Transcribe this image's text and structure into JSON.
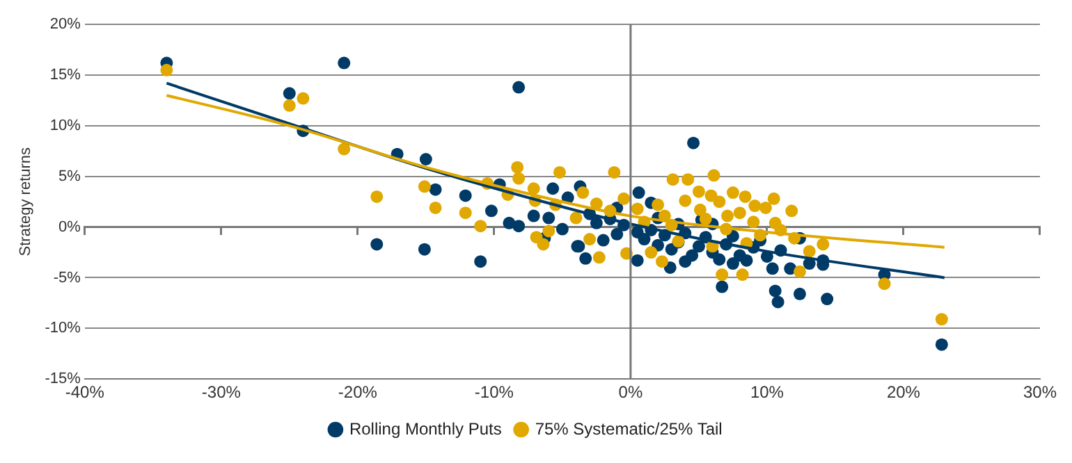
{
  "chart_data": {
    "type": "scatter",
    "ylabel": "Strategy returns",
    "xlim": [
      -40,
      30
    ],
    "xticks": [
      {
        "value": -40,
        "label": "-40%"
      },
      {
        "value": -30,
        "label": "-30%"
      },
      {
        "value": -20,
        "label": "-20%"
      },
      {
        "value": -10,
        "label": "-10%"
      },
      {
        "value": 0,
        "label": "0%"
      },
      {
        "value": 10,
        "label": "10%"
      },
      {
        "value": 20,
        "label": "20%"
      },
      {
        "value": 30,
        "label": "30%"
      }
    ],
    "ylim": [
      -15,
      20
    ],
    "yticks": [
      {
        "value": -15,
        "label": "-15%"
      },
      {
        "value": -10,
        "label": "-10%"
      },
      {
        "value": -5,
        "label": "-5%"
      },
      {
        "value": 0,
        "label": "0%"
      },
      {
        "value": 5,
        "label": "5%"
      },
      {
        "value": 10,
        "label": "10%"
      },
      {
        "value": 15,
        "label": "15%"
      },
      {
        "value": 20,
        "label": "20%"
      }
    ],
    "grid": "y",
    "legend": "bottom",
    "ref_lines": [
      {
        "axis": "x",
        "value": 0,
        "color": "#777777"
      }
    ],
    "marker": "circle",
    "series": [
      {
        "name": "75% Systematic/25% Tail",
        "color": "#e0a800",
        "x": [
          -34,
          -25,
          -24,
          -21,
          -18.6,
          -15.1,
          -14.3,
          -12.1,
          -11,
          -8.3,
          -8.2,
          -10.5,
          -5.2,
          -1.2,
          -2.3,
          -6.4,
          -6.9,
          -7.1,
          3.1,
          4.2,
          6.1,
          7.5,
          8.4,
          9.1,
          9.9,
          11.8,
          10.6,
          14.1,
          13.1,
          12.4,
          8.2,
          6.7,
          18.6,
          22.8,
          -0.3,
          2.3,
          5.9,
          5.1,
          7.1,
          0.5,
          1,
          2,
          2.5,
          3,
          4,
          5,
          5.5,
          6.5,
          7,
          8,
          9,
          9.5,
          10.5,
          11,
          12,
          -0.5,
          -1.5,
          -2.5,
          -3.5,
          -4,
          -5.5,
          -7,
          -6,
          -3,
          1.5,
          3.5,
          6,
          8.5,
          -9
        ],
        "values": [
          15.5,
          12,
          12.7,
          7.7,
          3,
          4,
          1.9,
          1.4,
          0.1,
          5.9,
          4.8,
          4.3,
          5.4,
          5.4,
          -3,
          -1.7,
          -1,
          3.8,
          4.7,
          4.7,
          5.1,
          3.4,
          3,
          2.1,
          1.9,
          1.6,
          0.4,
          -1.7,
          -2.4,
          -4.4,
          -4.7,
          -4.7,
          -5.6,
          -9.1,
          -2.6,
          -3.4,
          3.1,
          1.7,
          1.1,
          1.8,
          0.5,
          2.2,
          1.1,
          0.2,
          2.6,
          3.5,
          0.8,
          2.5,
          -0.2,
          1.4,
          0.5,
          -0.8,
          2.8,
          -0.3,
          -1.1,
          2.8,
          1.6,
          2.3,
          3.4,
          0.9,
          2.2,
          2.6,
          -0.4,
          -1.2,
          -2.5,
          -1.4,
          -1.9,
          -1.6,
          3.2
        ]
      },
      {
        "name": "Rolling Monthly Puts",
        "color": "#003a66",
        "x": [
          -34,
          -25,
          -24,
          -21,
          -17.1,
          -15,
          -14.3,
          -18.6,
          -15.1,
          -11,
          -8.2,
          -9.6,
          -10.2,
          -12.1,
          -5.7,
          -3.7,
          -4.6,
          -8.9,
          -8.2,
          -7.1,
          -6.3,
          -3.8,
          -3.3,
          4.6,
          0.6,
          1.5,
          2.9,
          6.7,
          10.6,
          10.8,
          12.4,
          14.4,
          18.6,
          22.8,
          14.1,
          14.1,
          13.1,
          11.7,
          12.4,
          10.4,
          5.2,
          0.5,
          -3.9,
          0.5,
          1,
          1.5,
          2,
          2.5,
          3,
          3.5,
          4,
          4.5,
          5,
          5.5,
          6,
          6.5,
          7,
          7.5,
          8,
          8.5,
          9,
          9.5,
          10,
          11,
          -0.5,
          -1,
          -1.5,
          -2,
          -2.5,
          -3,
          -1,
          2,
          3.5,
          -6,
          -5,
          6,
          7.5,
          4
        ],
        "values": [
          16.2,
          13.2,
          9.5,
          16.2,
          7.2,
          6.7,
          3.7,
          -1.7,
          -2.2,
          -3.4,
          13.8,
          4.2,
          1.6,
          3.1,
          3.8,
          4,
          2.9,
          0.4,
          0.1,
          1.1,
          -1.1,
          -1.9,
          -3.1,
          8.3,
          3.4,
          2.4,
          -4,
          -5.9,
          -6.3,
          -7.4,
          -6.6,
          -7.1,
          -4.7,
          -11.6,
          -3.3,
          -3.7,
          -3.6,
          -4.1,
          -1.1,
          -4.1,
          0.7,
          -3.3,
          -1.9,
          -0.5,
          -1.2,
          -0.3,
          -1.8,
          -0.8,
          -2.2,
          -1.5,
          -0.6,
          -2.8,
          -1.9,
          -1,
          -2.5,
          -3.2,
          -1.7,
          -0.9,
          -2.8,
          -3.3,
          -2,
          -1.3,
          -2.9,
          -2.3,
          0.2,
          -0.7,
          0.8,
          -1.3,
          0.4,
          1.3,
          1.9,
          0.9,
          0.3,
          0.9,
          -0.2,
          0.3,
          -3.6,
          -3.4
        ]
      },
      {
        "type": "line",
        "marker": "none",
        "color": "#e0a800",
        "x": [
          -34,
          -25,
          -15,
          -5,
          0,
          10,
          23
        ],
        "values": [
          13,
          10,
          5.9,
          2.5,
          1.1,
          -0.5,
          -2
        ]
      },
      {
        "type": "line",
        "marker": "none",
        "color": "#003a66",
        "x": [
          -34,
          -25,
          -15,
          -5,
          0,
          10,
          23
        ],
        "values": [
          14.2,
          10.2,
          5.8,
          2,
          0.3,
          -2.4,
          -5
        ]
      }
    ]
  }
}
